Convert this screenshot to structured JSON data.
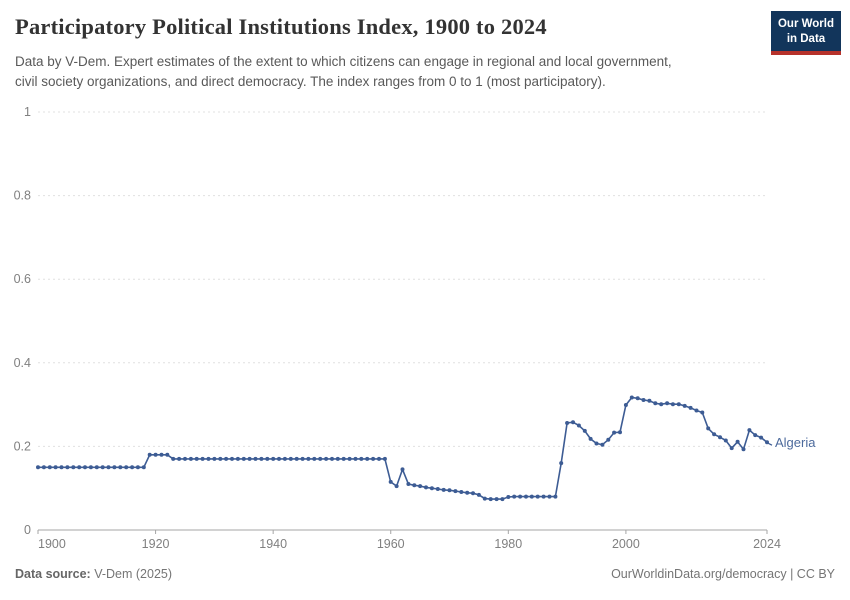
{
  "header": {
    "title": "Participatory Political Institutions Index, 1900 to 2024",
    "subtitle_line1": "Data by V-Dem. Expert estimates of the extent to which citizens can engage in regional and local government,",
    "subtitle_line2": "civil society organizations, and direct democracy. The index ranges from 0 to 1 (most participatory)."
  },
  "logo": {
    "line1": "Our World",
    "line2": "in Data",
    "bg_color": "#12355b",
    "accent_color": "#b6322b"
  },
  "footer": {
    "source_label": "Data source:",
    "source_value": " V-Dem (2025)",
    "right_text": "OurWorldinData.org/democracy | CC BY"
  },
  "chart_data": {
    "type": "line",
    "title": "Participatory Political Institutions Index, 1900 to 2024",
    "xlabel": "",
    "ylabel": "",
    "xlim": [
      1900,
      2024
    ],
    "ylim": [
      0,
      1
    ],
    "xticks": [
      1900,
      1920,
      1940,
      1960,
      1980,
      2000,
      2024
    ],
    "yticks": [
      0,
      0.2,
      0.4,
      0.6,
      0.8,
      1
    ],
    "ytick_labels": [
      "0",
      "0.2",
      "0.4",
      "0.6",
      "0.8",
      "1"
    ],
    "grid": "horizontal-dashed",
    "legend_position": "end-of-line-label",
    "colors": {
      "line": "#3d5c94",
      "entity_label": "#4c6a9c",
      "gridline": "#e0e0e0",
      "axis": "#a5a5a5",
      "tick_text": "#808080"
    },
    "series": [
      {
        "name": "Algeria",
        "x": [
          1900,
          1901,
          1902,
          1903,
          1904,
          1905,
          1906,
          1907,
          1908,
          1909,
          1910,
          1911,
          1912,
          1913,
          1914,
          1915,
          1916,
          1917,
          1918,
          1919,
          1920,
          1921,
          1922,
          1923,
          1924,
          1925,
          1926,
          1927,
          1928,
          1929,
          1930,
          1931,
          1932,
          1933,
          1934,
          1935,
          1936,
          1937,
          1938,
          1939,
          1940,
          1941,
          1942,
          1943,
          1944,
          1945,
          1946,
          1947,
          1948,
          1949,
          1950,
          1951,
          1952,
          1953,
          1954,
          1955,
          1956,
          1957,
          1958,
          1959,
          1960,
          1961,
          1962,
          1963,
          1964,
          1965,
          1966,
          1967,
          1968,
          1969,
          1970,
          1971,
          1972,
          1973,
          1974,
          1975,
          1976,
          1977,
          1978,
          1979,
          1980,
          1981,
          1982,
          1983,
          1984,
          1985,
          1986,
          1987,
          1988,
          1989,
          1990,
          1991,
          1992,
          1993,
          1994,
          1995,
          1996,
          1997,
          1998,
          1999,
          2000,
          2001,
          2002,
          2003,
          2004,
          2005,
          2006,
          2007,
          2008,
          2009,
          2010,
          2011,
          2012,
          2013,
          2014,
          2015,
          2016,
          2017,
          2018,
          2019,
          2020,
          2021,
          2022,
          2023,
          2024
        ],
        "values": [
          0.15,
          0.15,
          0.15,
          0.15,
          0.15,
          0.15,
          0.15,
          0.15,
          0.15,
          0.15,
          0.15,
          0.15,
          0.15,
          0.15,
          0.15,
          0.15,
          0.15,
          0.15,
          0.15,
          0.18,
          0.18,
          0.18,
          0.18,
          0.17,
          0.17,
          0.17,
          0.17,
          0.17,
          0.17,
          0.17,
          0.17,
          0.17,
          0.17,
          0.17,
          0.17,
          0.17,
          0.17,
          0.17,
          0.17,
          0.17,
          0.17,
          0.17,
          0.17,
          0.17,
          0.17,
          0.17,
          0.17,
          0.17,
          0.17,
          0.17,
          0.17,
          0.17,
          0.17,
          0.17,
          0.17,
          0.17,
          0.17,
          0.17,
          0.17,
          0.17,
          0.115,
          0.105,
          0.145,
          0.11,
          0.107,
          0.105,
          0.102,
          0.1,
          0.098,
          0.096,
          0.095,
          0.093,
          0.091,
          0.089,
          0.088,
          0.084,
          0.075,
          0.074,
          0.074,
          0.074,
          0.079,
          0.08,
          0.08,
          0.08,
          0.08,
          0.08,
          0.08,
          0.08,
          0.08,
          0.16,
          0.256,
          0.258,
          0.25,
          0.237,
          0.218,
          0.207,
          0.204,
          0.216,
          0.233,
          0.234,
          0.299,
          0.317,
          0.315,
          0.311,
          0.309,
          0.303,
          0.301,
          0.303,
          0.301,
          0.301,
          0.297,
          0.292,
          0.286,
          0.281,
          0.243,
          0.229,
          0.222,
          0.214,
          0.196,
          0.211,
          0.193,
          0.239,
          0.227,
          0.221,
          0.21
        ]
      }
    ]
  }
}
